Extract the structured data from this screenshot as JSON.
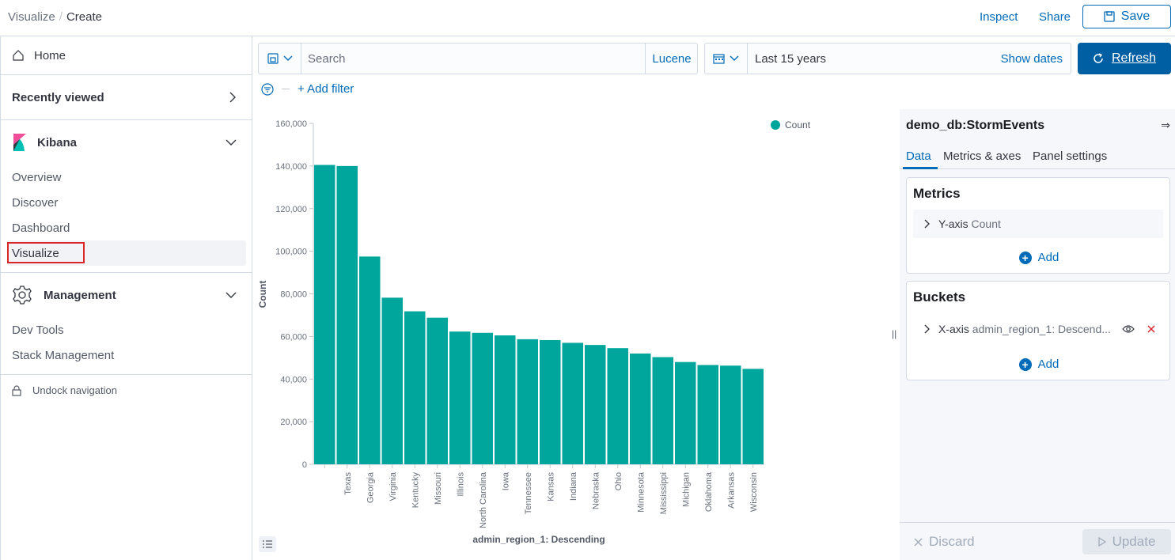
{
  "breadcrumbs": [
    "Visualize",
    "Create"
  ],
  "header": {
    "inspect": "Inspect",
    "share": "Share",
    "save": "Save"
  },
  "sidebar": {
    "home": "Home",
    "recently_viewed": "Recently viewed",
    "kibana_group": "Kibana",
    "kibana_links": [
      "Overview",
      "Discover",
      "Dashboard",
      "Visualize"
    ],
    "management_group": "Management",
    "management_links": [
      "Dev Tools",
      "Stack Management"
    ],
    "undock": "Undock navigation"
  },
  "query": {
    "placeholder": "Search",
    "language": "Lucene"
  },
  "time": {
    "range": "Last 15 years",
    "show_dates": "Show dates",
    "refresh": "Refresh"
  },
  "filter": {
    "add": "+ Add filter"
  },
  "panel": {
    "title": "demo_db:StormEvents",
    "tabs": [
      "Data",
      "Metrics & axes",
      "Panel settings"
    ],
    "metrics": {
      "heading": "Metrics",
      "item_key": "Y-axis",
      "item_value": "Count",
      "add": "Add"
    },
    "buckets": {
      "heading": "Buckets",
      "item_key": "X-axis",
      "item_value": "admin_region_1: Descend...",
      "add": "Add"
    },
    "discard": "Discard",
    "update": "Update"
  },
  "colors": {
    "accent": "#006bb8",
    "bar": "#00a69b",
    "highlight": "#d9262b"
  },
  "chart_data": {
    "type": "bar",
    "categories": [
      "",
      "Texas",
      "Georgia",
      "Virginia",
      "Kentucky",
      "Missouri",
      "Illinois",
      "North Carolina",
      "Iowa",
      "Tennessee",
      "Kansas",
      "Indiana",
      "Nebraska",
      "Ohio",
      "Minnesota",
      "Mississippi",
      "Michigan",
      "Oklahoma",
      "Arkansas",
      "Wisconsin"
    ],
    "values": [
      140500,
      140000,
      97500,
      78200,
      71800,
      68800,
      62300,
      61700,
      60500,
      58700,
      58300,
      57000,
      56000,
      54500,
      52000,
      50300,
      48000,
      46600,
      46300,
      44800
    ],
    "series_name": "Count",
    "xlabel": "admin_region_1: Descending",
    "ylabel": "Count",
    "ylim": [
      0,
      160000
    ],
    "yticks": [
      "0",
      "20,000",
      "40,000",
      "60,000",
      "80,000",
      "100,000",
      "120,000",
      "140,000",
      "160,000"
    ],
    "legend_position": "top-right",
    "grid": false
  }
}
